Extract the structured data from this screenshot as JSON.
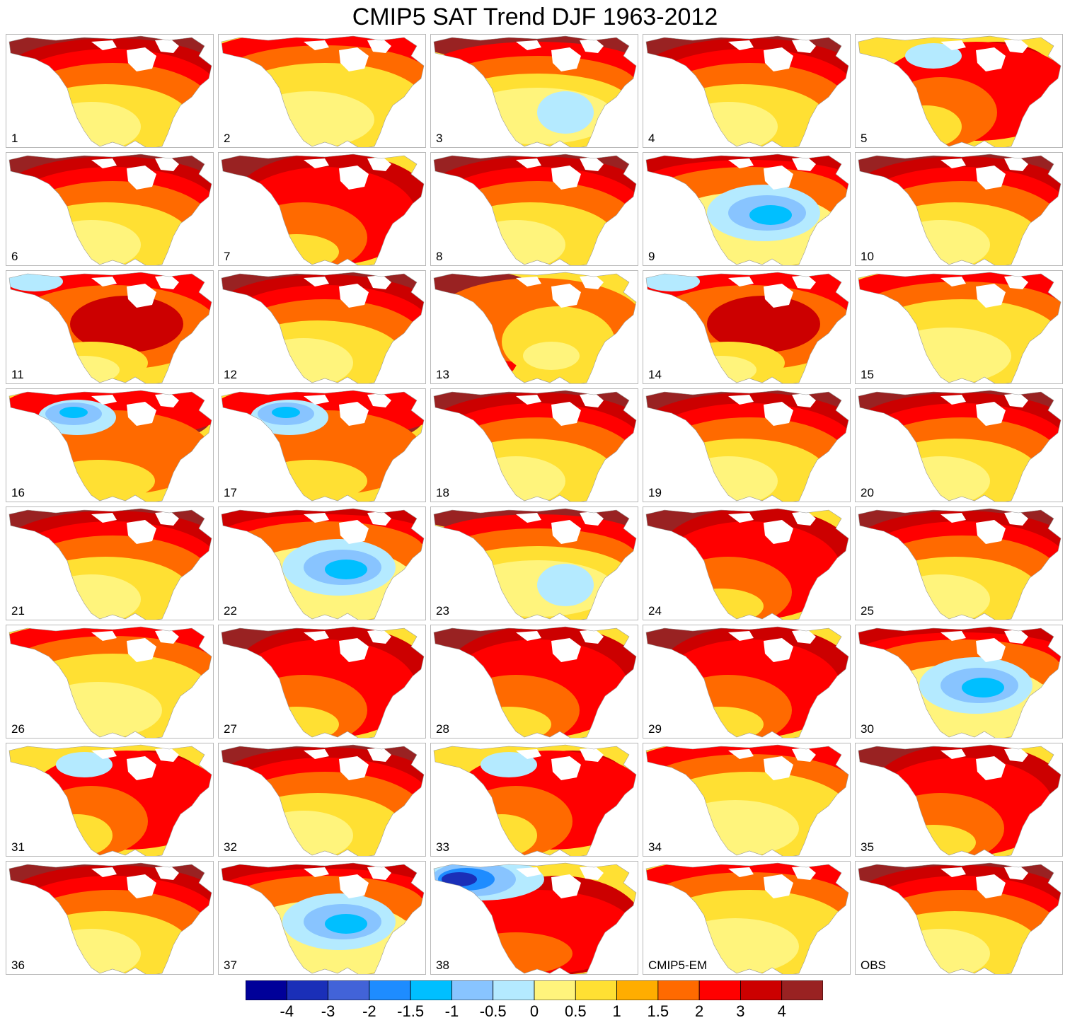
{
  "title": "CMIP5 SAT Trend DJF 1963-2012",
  "panels": [
    {
      "label": "1",
      "pattern": "north-hot"
    },
    {
      "label": "2",
      "pattern": "warm-mild"
    },
    {
      "label": "3",
      "pattern": "west-cool"
    },
    {
      "label": "4",
      "pattern": "north-hot"
    },
    {
      "label": "5",
      "pattern": "east-hot"
    },
    {
      "label": "6",
      "pattern": "north-hot"
    },
    {
      "label": "7",
      "pattern": "all-hot"
    },
    {
      "label": "8",
      "pattern": "north-hot"
    },
    {
      "label": "9",
      "pattern": "center-cool"
    },
    {
      "label": "10",
      "pattern": "north-hot"
    },
    {
      "label": "11",
      "pattern": "center-hot"
    },
    {
      "label": "12",
      "pattern": "north-hot"
    },
    {
      "label": "13",
      "pattern": "west-hot"
    },
    {
      "label": "14",
      "pattern": "center-hot"
    },
    {
      "label": "15",
      "pattern": "warm-mild"
    },
    {
      "label": "16",
      "pattern": "nw-cool"
    },
    {
      "label": "17",
      "pattern": "nw-cool"
    },
    {
      "label": "18",
      "pattern": "north-hot"
    },
    {
      "label": "19",
      "pattern": "north-hot"
    },
    {
      "label": "20",
      "pattern": "north-hot"
    },
    {
      "label": "21",
      "pattern": "north-hot"
    },
    {
      "label": "22",
      "pattern": "center-cool"
    },
    {
      "label": "23",
      "pattern": "west-cool"
    },
    {
      "label": "24",
      "pattern": "all-hot"
    },
    {
      "label": "25",
      "pattern": "north-hot"
    },
    {
      "label": "26",
      "pattern": "warm-mild"
    },
    {
      "label": "27",
      "pattern": "all-hot"
    },
    {
      "label": "28",
      "pattern": "all-hot"
    },
    {
      "label": "29",
      "pattern": "all-hot"
    },
    {
      "label": "30",
      "pattern": "center-cool"
    },
    {
      "label": "31",
      "pattern": "east-hot"
    },
    {
      "label": "32",
      "pattern": "north-hot"
    },
    {
      "label": "33",
      "pattern": "east-hot"
    },
    {
      "label": "34",
      "pattern": "warm-mild"
    },
    {
      "label": "35",
      "pattern": "all-hot"
    },
    {
      "label": "36",
      "pattern": "north-hot"
    },
    {
      "label": "37",
      "pattern": "center-cool"
    },
    {
      "label": "38",
      "pattern": "nw-cold-east-hot"
    },
    {
      "label": "CMIP5-EM",
      "pattern": "warm-mild"
    },
    {
      "label": "OBS",
      "pattern": "north-hot"
    }
  ],
  "colorbar": {
    "colors": [
      "#000099",
      "#1a2fb8",
      "#4263d8",
      "#1e8cff",
      "#00bfff",
      "#88c4ff",
      "#b4eaff",
      "#fff47c",
      "#ffe033",
      "#ffad00",
      "#ff6a00",
      "#ff0000",
      "#cc0000",
      "#992222"
    ],
    "tick_labels": [
      "-4",
      "-3",
      "-2",
      "-1.5",
      "-1",
      "-0.5",
      "0",
      "0.5",
      "1",
      "1.5",
      "2",
      "3",
      "4"
    ]
  }
}
